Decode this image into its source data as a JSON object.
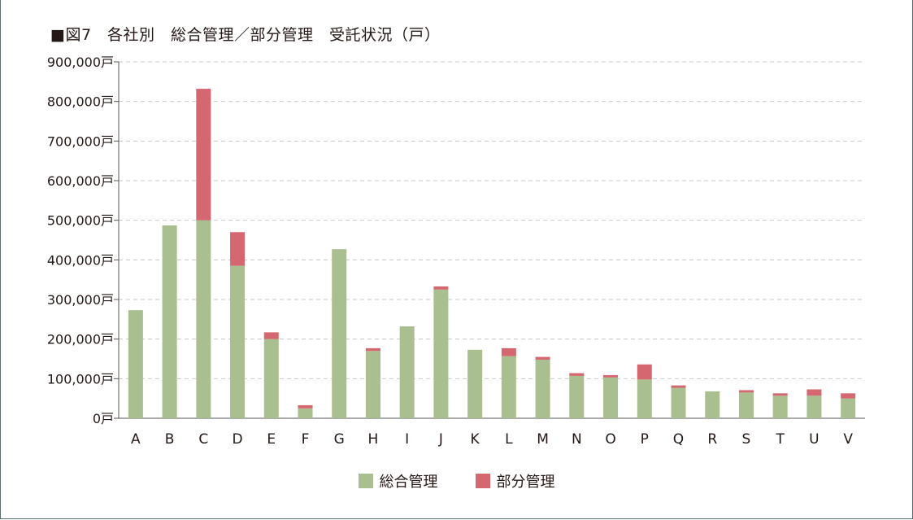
{
  "title": "■図7　各社別　総合管理／部分管理　受託状況（戸）",
  "chart_data": {
    "type": "bar",
    "stacked": true,
    "title": "■図7　各社別　総合管理／部分管理　受託状況（戸）",
    "categories": [
      "A",
      "B",
      "C",
      "D",
      "E",
      "F",
      "G",
      "H",
      "I",
      "J",
      "K",
      "L",
      "M",
      "N",
      "O",
      "P",
      "Q",
      "R",
      "S",
      "T",
      "U",
      "V"
    ],
    "series": [
      {
        "name": "総合管理",
        "color": "#a9bf8f",
        "values": [
          273000,
          487000,
          500000,
          385000,
          200000,
          25000,
          427000,
          170000,
          232000,
          325000,
          173000,
          157000,
          148000,
          107000,
          103000,
          98000,
          77000,
          68000,
          65000,
          57000,
          57000,
          50000
        ]
      },
      {
        "name": "部分管理",
        "color": "#d4676f",
        "values": [
          0,
          0,
          332000,
          85000,
          17000,
          8000,
          0,
          7000,
          0,
          8000,
          0,
          20000,
          7000,
          7000,
          6000,
          38000,
          6000,
          0,
          6000,
          6000,
          16000,
          13000
        ]
      }
    ],
    "ylim": [
      0,
      900000
    ],
    "yticks": [
      0,
      100000,
      200000,
      300000,
      400000,
      500000,
      600000,
      700000,
      800000,
      900000
    ],
    "ytick_labels": [
      "0戸",
      "100,000戸",
      "200,000戸",
      "300,000戸",
      "400,000戸",
      "500,000戸",
      "600,000戸",
      "700,000戸",
      "800,000戸",
      "900,000戸"
    ],
    "grid": true,
    "legend_position": "bottom-center"
  }
}
